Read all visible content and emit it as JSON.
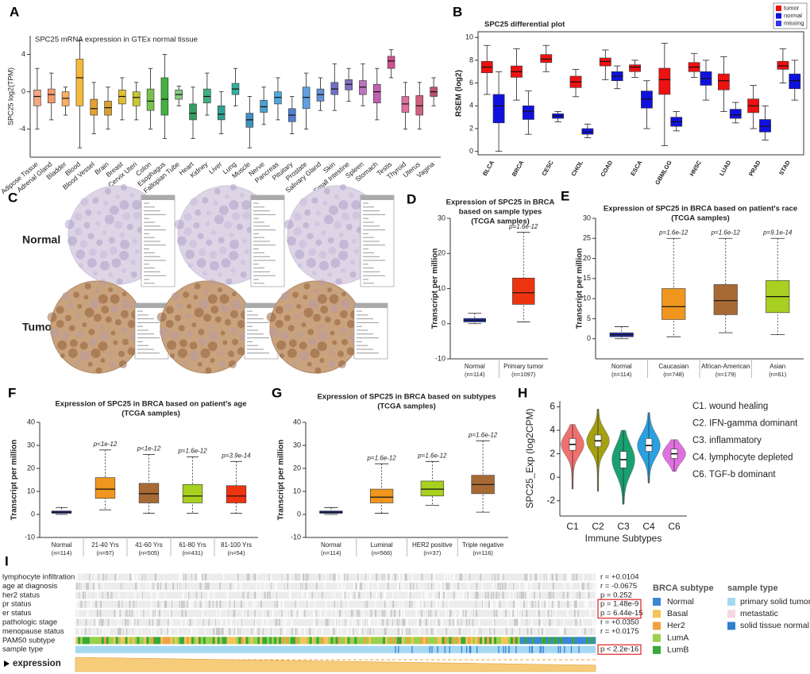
{
  "chart_data": [
    {
      "panel": "A",
      "type": "box",
      "title": "SPC25 mRNA expression in GTEx normal tissue",
      "ylabel": "SPC25  log2(TPM)",
      "categories": [
        "Adipose Tissue",
        "Adrenal Gland",
        "Bladder",
        "Blood",
        "Blood Vessel",
        "Brain",
        "Breast",
        "Cervix Uteri",
        "Colon",
        "Esophagus",
        "Fallopian Tube",
        "Heart",
        "Kidney",
        "Liver",
        "Lung",
        "Muscle",
        "Nerve",
        "Pancreas",
        "Pituitary",
        "Prostate",
        "Salivary Gland",
        "Skin",
        "Small Intestine",
        "Spleen",
        "Stomach",
        "Testis",
        "Thyroid",
        "Uterus",
        "Vagina"
      ],
      "highlight": 6,
      "highlight_color": "#e02020",
      "boxes": [
        {
          "min": -4,
          "q1": -1.5,
          "median": -0.5,
          "q3": 0.2,
          "max": 2.5
        },
        {
          "min": -3,
          "q1": -1.2,
          "median": -0.3,
          "q3": 0.3,
          "max": 2
        },
        {
          "min": -2.5,
          "q1": -1.5,
          "median": -0.7,
          "q3": 0,
          "max": 0.5
        },
        {
          "min": -6,
          "q1": -1.5,
          "median": 1.5,
          "q3": 3.5,
          "max": 5.5
        },
        {
          "min": -4.5,
          "q1": -2.5,
          "median": -1.8,
          "q3": -0.8,
          "max": 1
        },
        {
          "min": -4,
          "q1": -2.5,
          "median": -1.7,
          "q3": -1,
          "max": 0.5
        },
        {
          "min": -3,
          "q1": -1.3,
          "median": -0.5,
          "q3": 0.2,
          "max": 1.5
        },
        {
          "min": -3,
          "q1": -1.5,
          "median": -0.6,
          "q3": 0,
          "max": 1
        },
        {
          "min": -4,
          "q1": -2,
          "median": -1,
          "q3": 0.3,
          "max": 2.5
        },
        {
          "min": -5,
          "q1": -2.5,
          "median": -0.8,
          "q3": 1.5,
          "max": 4
        },
        {
          "min": -1.5,
          "q1": -0.8,
          "median": -0.3,
          "q3": 0.2,
          "max": 0.6
        },
        {
          "min": -5,
          "q1": -3,
          "median": -2.3,
          "q3": -1.3,
          "max": 0.5
        },
        {
          "min": -2.5,
          "q1": -1.2,
          "median": -0.5,
          "q3": 0.3,
          "max": 2
        },
        {
          "min": -4.5,
          "q1": -3,
          "median": -2.4,
          "q3": -1.5,
          "max": 0
        },
        {
          "min": -1.5,
          "q1": -0.3,
          "median": 0.3,
          "q3": 0.9,
          "max": 2.5
        },
        {
          "min": -6,
          "q1": -3.8,
          "median": -3,
          "q3": -2.3,
          "max": -0.5
        },
        {
          "min": -3.5,
          "q1": -2.2,
          "median": -1.6,
          "q3": -0.9,
          "max": 0.5
        },
        {
          "min": -3,
          "q1": -1.3,
          "median": -0.6,
          "q3": 0,
          "max": 1.5
        },
        {
          "min": -4.5,
          "q1": -3.2,
          "median": -2.5,
          "q3": -1.8,
          "max": -0.5
        },
        {
          "min": -4,
          "q1": -1.8,
          "median": -0.6,
          "q3": 0.5,
          "max": 2
        },
        {
          "min": -2,
          "q1": -1,
          "median": -0.3,
          "q3": 0.3,
          "max": 1.5
        },
        {
          "min": -2,
          "q1": -0.3,
          "median": 0.3,
          "q3": 1,
          "max": 3
        },
        {
          "min": -1,
          "q1": 0.2,
          "median": 0.8,
          "q3": 1.3,
          "max": 2.5
        },
        {
          "min": -1.5,
          "q1": -0.3,
          "median": 0.5,
          "q3": 1.2,
          "max": 3
        },
        {
          "min": -3,
          "q1": -1.2,
          "median": 0,
          "q3": 0.8,
          "max": 2.5
        },
        {
          "min": 1.5,
          "q1": 2.5,
          "median": 3.3,
          "q3": 3.8,
          "max": 4.5
        },
        {
          "min": -4,
          "q1": -2.2,
          "median": -1.3,
          "q3": -0.5,
          "max": 1
        },
        {
          "min": -4,
          "q1": -2.5,
          "median": -1.5,
          "q3": -0.4,
          "max": 1
        },
        {
          "min": -1.5,
          "q1": -0.5,
          "median": 0,
          "q3": 0.5,
          "max": 1.5
        }
      ],
      "colors": [
        "#f4a582",
        "#f49a6a",
        "#fdae61",
        "#f6b93b",
        "#e5a030",
        "#d9a030",
        "#e0c030",
        "#c8c830",
        "#78c050",
        "#40b040",
        "#88c888",
        "#33a060",
        "#40b080",
        "#30a090",
        "#30b0a0",
        "#4090c0",
        "#4aa0d0",
        "#50a8d8",
        "#5080d0",
        "#60a0e0",
        "#6090d8",
        "#7070c8",
        "#8070c0",
        "#c070c0",
        "#c060b0",
        "#d05090",
        "#e070a0",
        "#d06080",
        "#c05070"
      ],
      "ylim": [
        -7,
        6
      ],
      "yticks": [
        4,
        0,
        -4
      ]
    },
    {
      "panel": "B",
      "type": "box",
      "title": "SPC25 differential plot",
      "ylabel": "RSEM (log2)",
      "categories": [
        "BLCA",
        "BRCA",
        "CESC",
        "CHOL",
        "COAD",
        "ESCA",
        "GBMLGG",
        "HNSC",
        "LUAD",
        "PRAD",
        "STAD"
      ],
      "highlight": 1,
      "highlight_color": "#e02020",
      "series": [
        {
          "name": "tumor",
          "color": "#ee1111",
          "boxes": [
            {
              "min": 5,
              "q1": 6.9,
              "median": 7.4,
              "q3": 7.9,
              "max": 9.3
            },
            {
              "min": 4.5,
              "q1": 6.5,
              "median": 7,
              "q3": 7.5,
              "max": 9
            },
            {
              "min": 7,
              "q1": 7.8,
              "median": 8.1,
              "q3": 8.5,
              "max": 9.3
            },
            {
              "min": 4.8,
              "q1": 5.6,
              "median": 6.1,
              "q3": 6.6,
              "max": 7.2
            },
            {
              "min": 6.3,
              "q1": 7.5,
              "median": 7.9,
              "q3": 8.2,
              "max": 8.9
            },
            {
              "min": 6.5,
              "q1": 7,
              "median": 7.4,
              "q3": 7.6,
              "max": 8
            },
            {
              "min": 0.5,
              "q1": 5,
              "median": 6.3,
              "q3": 7.3,
              "max": 9.5
            },
            {
              "min": 6.5,
              "q1": 7,
              "median": 7.4,
              "q3": 7.8,
              "max": 8.6
            },
            {
              "min": 3.5,
              "q1": 5.4,
              "median": 6.2,
              "q3": 6.8,
              "max": 8.3
            },
            {
              "min": 2,
              "q1": 3.4,
              "median": 4,
              "q3": 4.6,
              "max": 5.8
            },
            {
              "min": 6,
              "q1": 7.2,
              "median": 7.5,
              "q3": 7.9,
              "max": 9
            }
          ]
        },
        {
          "name": "normal",
          "color": "#1111dd",
          "boxes": [
            {
              "min": 0,
              "q1": 2.5,
              "median": 4,
              "q3": 5,
              "max": 7
            },
            {
              "min": 1.5,
              "q1": 2.8,
              "median": 3.5,
              "q3": 4,
              "max": 5.3
            },
            {
              "min": 2.6,
              "q1": 2.9,
              "median": 3.1,
              "q3": 3.3,
              "max": 3.5
            },
            {
              "min": 1.2,
              "q1": 1.5,
              "median": 1.7,
              "q3": 2,
              "max": 2.4
            },
            {
              "min": 5.5,
              "q1": 6.2,
              "median": 6.6,
              "q3": 7,
              "max": 7.5
            },
            {
              "min": 2,
              "q1": 3.8,
              "median": 4.6,
              "q3": 5.3,
              "max": 6.2
            },
            {
              "min": 1.8,
              "q1": 2.2,
              "median": 2.6,
              "q3": 3,
              "max": 3.5
            },
            {
              "min": 4.5,
              "q1": 5.8,
              "median": 6.4,
              "q3": 7,
              "max": 8
            },
            {
              "min": 2.5,
              "q1": 2.9,
              "median": 3.2,
              "q3": 3.7,
              "max": 4.3
            },
            {
              "min": 1,
              "q1": 1.7,
              "median": 2.2,
              "q3": 2.8,
              "max": 4
            },
            {
              "min": 4.5,
              "q1": 5.5,
              "median": 6.2,
              "q3": 6.8,
              "max": 8
            }
          ]
        },
        {
          "name": "missing",
          "color": "#3333ee",
          "boxes": [
            null,
            null,
            null,
            null,
            null,
            null,
            null,
            null,
            null,
            null,
            null
          ]
        }
      ],
      "ylim": [
        -0.3,
        10.5
      ],
      "yticks": [
        0,
        2,
        4,
        6,
        8,
        10
      ]
    },
    {
      "panel": "D",
      "type": "box",
      "title": [
        "Expression of SPC25 in BRCA",
        "based on sample types"
      ],
      "subtitle": "(TCGA samples)",
      "ylabel": "Transcript per million",
      "categories": [
        "Normal",
        "Primary tumor"
      ],
      "n_labels": [
        "(n=114)",
        "(n=1097)"
      ],
      "p_labels": [
        null,
        "p=1.6e-12"
      ],
      "boxes": [
        {
          "min": 0,
          "q1": 0.5,
          "median": 1,
          "q3": 1.5,
          "max": 3
        },
        {
          "min": 0.5,
          "q1": 5.5,
          "median": 8.8,
          "q3": 13,
          "max": 26
        }
      ],
      "colors": [
        "#2233aa",
        "#ee3311"
      ],
      "ylim": [
        -10,
        30
      ],
      "yticks": [
        -10,
        0,
        10,
        20,
        30
      ]
    },
    {
      "panel": "E",
      "type": "box",
      "title": [
        "Expression of SPC25 in BRCA based on patient's race"
      ],
      "subtitle": "(TCGA samples)",
      "ylabel": "Transcript per million",
      "categories": [
        "Normal",
        "Caucasian",
        "African-American",
        "Asian"
      ],
      "n_labels": [
        "(n=114)",
        "(n=748)",
        "(n=179)",
        "(n=61)"
      ],
      "p_labels": [
        null,
        "p=1.6e-12",
        "p=1.6e-12",
        "p=9.1e-14"
      ],
      "boxes": [
        {
          "min": 0,
          "q1": 0.5,
          "median": 1,
          "q3": 1.5,
          "max": 3
        },
        {
          "min": 0.5,
          "q1": 4.8,
          "median": 8,
          "q3": 12.5,
          "max": 25
        },
        {
          "min": 1.5,
          "q1": 6,
          "median": 9.5,
          "q3": 13.5,
          "max": 25
        },
        {
          "min": 1,
          "q1": 6.5,
          "median": 10.5,
          "q3": 14.5,
          "max": 25
        }
      ],
      "colors": [
        "#2233aa",
        "#f0961e",
        "#a86a35",
        "#a8d020"
      ],
      "ylim": [
        -5,
        30
      ],
      "yticks": [
        0,
        5,
        10,
        15,
        20,
        25,
        30
      ]
    },
    {
      "panel": "F",
      "type": "box",
      "title": [
        "Expression of SPC25 in BRCA based on patient's age"
      ],
      "subtitle": "(TCGA samples)",
      "ylabel": "Transcript per million",
      "categories": [
        "Normal",
        "21-40 Yrs",
        "41-60 Yrs",
        "61-80 Yrs",
        "81-100 Yrs"
      ],
      "n_labels": [
        "(n=114)",
        "(n=97)",
        "(n=505)",
        "(n=431)",
        "(n=54)"
      ],
      "p_labels": [
        null,
        "p<1e-12",
        "p<1e-12",
        "p=1.6e-12",
        "p=3.9e-14"
      ],
      "boxes": [
        {
          "min": 0,
          "q1": 0.5,
          "median": 1,
          "q3": 1.5,
          "max": 3
        },
        {
          "min": 2,
          "q1": 7,
          "median": 11,
          "q3": 16,
          "max": 28
        },
        {
          "min": 0.5,
          "q1": 5,
          "median": 9,
          "q3": 13.5,
          "max": 26
        },
        {
          "min": 0.5,
          "q1": 5,
          "median": 8,
          "q3": 13,
          "max": 25
        },
        {
          "min": 0.5,
          "q1": 5,
          "median": 8,
          "q3": 12.5,
          "max": 23
        }
      ],
      "colors": [
        "#2233aa",
        "#f0961e",
        "#a86a35",
        "#a8d020",
        "#ee3311"
      ],
      "ylim": [
        -10,
        40
      ],
      "yticks": [
        -10,
        0,
        10,
        20,
        30,
        40
      ]
    },
    {
      "panel": "G",
      "type": "box",
      "title": [
        "Expression of SPC25 in BRCA based on subtypes"
      ],
      "subtitle": "(TCGA samples)",
      "ylabel": "Transcript per million",
      "categories": [
        "Normal",
        "Luminal",
        "HER2 positive",
        "Triple negative"
      ],
      "n_labels": [
        "(n=114)",
        "(n=566)",
        "(n=37)",
        "(n=116)"
      ],
      "p_labels": [
        null,
        "p=1.6e-12",
        "p=1.6e-12",
        "p=1.6e-12"
      ],
      "boxes": [
        {
          "min": 0,
          "q1": 0.5,
          "median": 1,
          "q3": 1.5,
          "max": 3
        },
        {
          "min": 0.5,
          "q1": 5,
          "median": 7.5,
          "q3": 11,
          "max": 22
        },
        {
          "min": 4,
          "q1": 8,
          "median": 11,
          "q3": 14.5,
          "max": 23
        },
        {
          "min": 1,
          "q1": 9,
          "median": 13,
          "q3": 17,
          "max": 32
        }
      ],
      "colors": [
        "#2233aa",
        "#f0961e",
        "#a8d020",
        "#a86a35"
      ],
      "ylim": [
        -10,
        40
      ],
      "yticks": [
        -10,
        0,
        10,
        20,
        30,
        40
      ]
    },
    {
      "panel": "H",
      "type": "violin",
      "ylabel": "SPC25_Exp (log2CPM)",
      "xlabel": "Immune Subtypes",
      "categories": [
        "C1",
        "C2",
        "C3",
        "C4",
        "C6"
      ],
      "legend": [
        "C1. wound healing",
        "C2. IFN-gamma dominant",
        "C3. inflammatory",
        "C4. lymphocyte depleted",
        "C6. TGF-b dominant"
      ],
      "boxes": [
        {
          "min": -1,
          "q1": 2.3,
          "median": 2.8,
          "q3": 3.3,
          "max": 4.5
        },
        {
          "min": -1.2,
          "q1": 2.6,
          "median": 3.1,
          "q3": 3.6,
          "max": 5.8
        },
        {
          "min": -2.3,
          "q1": 0.8,
          "median": 1.5,
          "q3": 2.2,
          "max": 4
        },
        {
          "min": -0.5,
          "q1": 2.2,
          "median": 2.7,
          "q3": 3.3,
          "max": 5.5
        },
        {
          "min": 0.5,
          "q1": 1.6,
          "median": 2,
          "q3": 2.4,
          "max": 3.2
        }
      ],
      "colors": [
        "#f07070",
        "#a5a010",
        "#18a070",
        "#2aa0e0",
        "#e070e0"
      ],
      "ylim": [
        -3.3,
        6.5
      ],
      "yticks": [
        -2,
        0,
        2,
        4,
        6
      ]
    }
  ],
  "panel_c": {
    "label": "C",
    "rows": [
      "Normal",
      "Tumor"
    ]
  },
  "panel_i": {
    "label": "I",
    "rows": [
      "lymphocyte infiltration",
      "age at diagnosis",
      "her2 status",
      "pr status",
      "er status",
      "pathologic stage",
      "menopause status",
      "PAM50 subtype",
      "sample type"
    ],
    "stats": [
      "r = +0.0104",
      "r = -0.0675",
      "p = 0.252",
      "p = 1.48e-9",
      "p = 6.44e-15",
      "r = +0.0350",
      "r = +0.0175",
      null,
      "p < 2.2e-16"
    ],
    "subtype_legend": {
      "title": "BRCA subtype",
      "items": [
        {
          "name": "Normal",
          "color": "#3b86d6"
        },
        {
          "name": "Basal",
          "color": "#f2c45a"
        },
        {
          "name": "Her2",
          "color": "#f0a040"
        },
        {
          "name": "LumA",
          "color": "#9bd04a"
        },
        {
          "name": "LumB",
          "color": "#3aa83a"
        }
      ]
    },
    "sample_legend": {
      "title": "sample type",
      "items": [
        {
          "name": "primary solid tumor",
          "color": "#a6d8f2"
        },
        {
          "name": "metastatic",
          "color": "#f6d6e2"
        },
        {
          "name": "solid tissue normal",
          "color": "#2f7fd0"
        }
      ]
    },
    "expression": "expression"
  }
}
